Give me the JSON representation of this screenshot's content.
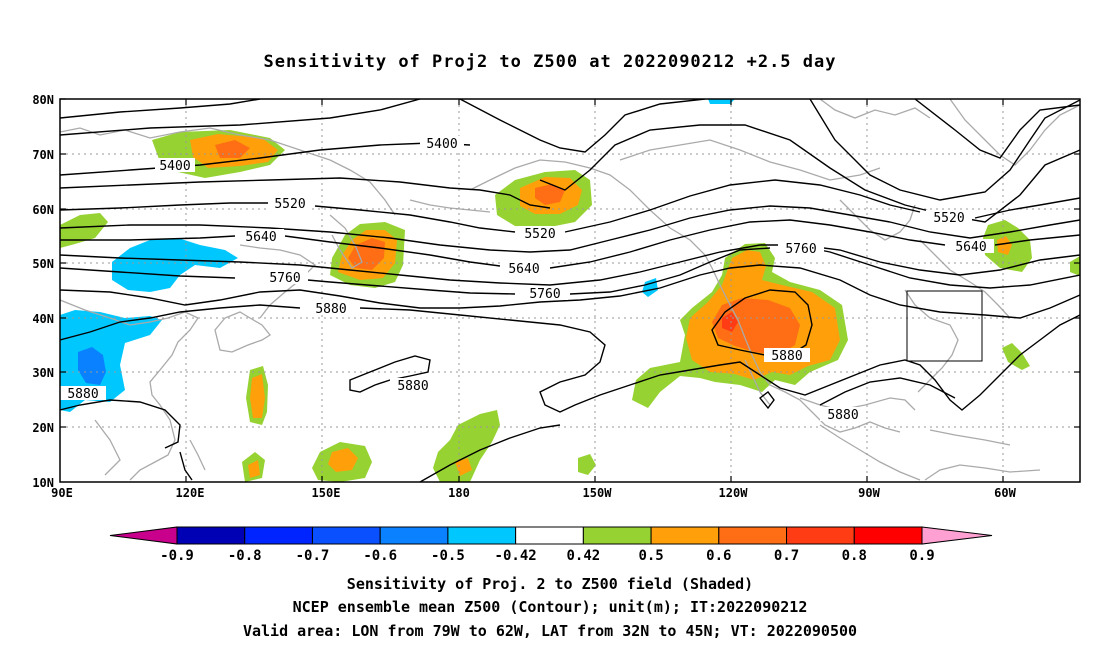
{
  "title": "Sensitivity of Proj2 to Z500 at 2022090212 +2.5 day",
  "lat_ticks": [
    "80N",
    "70N",
    "60N",
    "50N",
    "40N",
    "30N",
    "20N",
    "10N"
  ],
  "lon_ticks": [
    "90E",
    "120E",
    "150E",
    "180",
    "150W",
    "120W",
    "90W",
    "60W"
  ],
  "contour_labels": [
    "5400",
    "5400",
    "5520",
    "5520",
    "5520",
    "5640",
    "5640",
    "5640",
    "5760",
    "5760",
    "5760",
    "5880",
    "5880",
    "5880",
    "5880",
    "5880"
  ],
  "colorbar": {
    "tick_labels": [
      "-0.9",
      "-0.8",
      "-0.7",
      "-0.6",
      "-0.5",
      "-0.42",
      "0.42",
      "0.5",
      "0.6",
      "0.7",
      "0.8",
      "0.9"
    ],
    "colors": [
      "#c8008c",
      "#0000b4",
      "#0024ff",
      "#0a50ff",
      "#0a82ff",
      "#00c8ff",
      "#ffffff",
      "#96d232",
      "#ffa00a",
      "#ff6e14",
      "#ff3c14",
      "#ff0000",
      "#ffa0d2"
    ]
  },
  "captions": [
    "Sensitivity of Proj. 2 to Z500 field (Shaded)",
    "NCEP ensemble mean Z500 (Contour); unit(m); IT:2022090212",
    "Valid area: LON from 79W to 62W, LAT from 32N to 45N; VT: 2022090500"
  ],
  "colors": {
    "coast": "#aaaaaa",
    "contour": "#000000",
    "grid": "#999999",
    "green": "#96d232",
    "orange": "#ffa00a",
    "darkorange": "#ff6e14",
    "red": "#ff3c14",
    "cyan": "#00c8ff",
    "blue": "#0a82ff"
  }
}
